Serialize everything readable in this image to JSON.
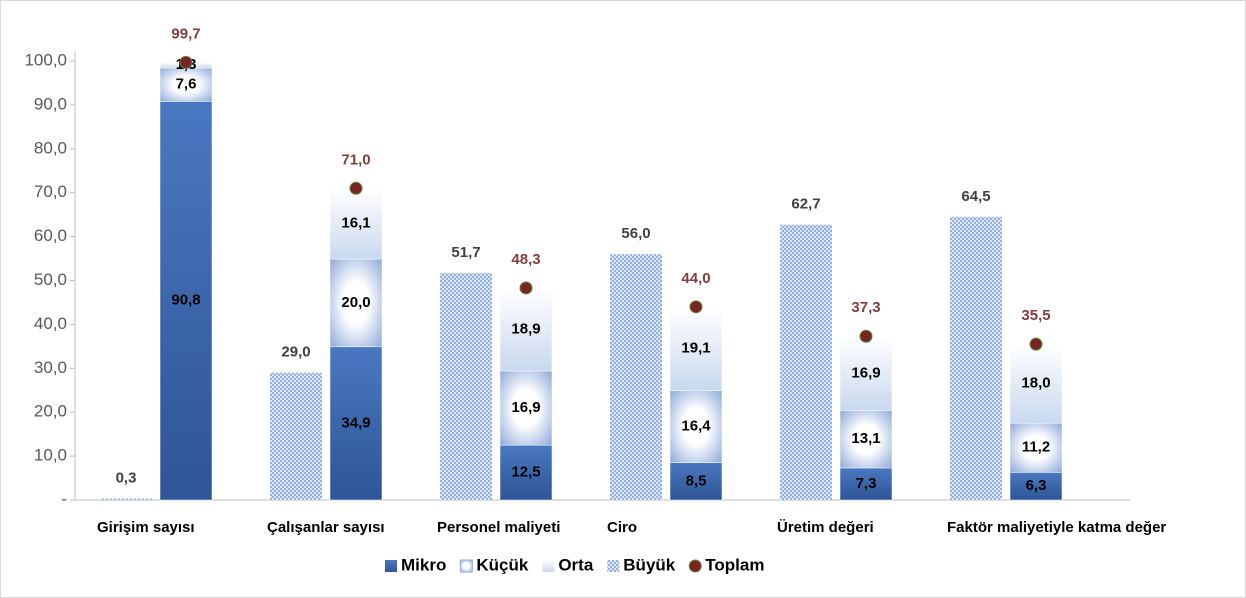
{
  "chart_data": {
    "type": "bar",
    "categories": [
      "Girişim sayısı",
      "Çalışanlar sayısı",
      "Personel maliyeti",
      "Ciro",
      "Üretim değeri",
      "Faktör maliyetiyle katma değer"
    ],
    "series": [
      {
        "name": "Mikro",
        "color": "#4a78c0",
        "values": [
          90.8,
          34.9,
          12.5,
          8.5,
          7.3,
          6.3
        ],
        "value_labels": [
          "90,8",
          "34,9",
          "12,5",
          "8,5",
          "7,3",
          "6,3"
        ]
      },
      {
        "name": "Küçük",
        "color": "#8eaadb",
        "values": [
          7.6,
          20.0,
          16.9,
          16.4,
          13.1,
          11.2
        ],
        "value_labels": [
          "7,6",
          "20,0",
          "16,9",
          "16,4",
          "13,1",
          "11,2"
        ]
      },
      {
        "name": "Orta",
        "color": "#c9d8ef",
        "values": [
          1.3,
          16.1,
          18.9,
          19.1,
          16.9,
          18.0
        ],
        "value_labels": [
          "1,3",
          "16,1",
          "18,9",
          "19,1",
          "16,9",
          "18,0"
        ]
      },
      {
        "name": "Büyük",
        "color": "#7d9fd6",
        "values": [
          0.3,
          29.0,
          51.7,
          56.0,
          62.7,
          64.5
        ],
        "value_labels": [
          "0,3",
          "29,0",
          "51,7",
          "56,0",
          "62,7",
          "64,5"
        ]
      },
      {
        "name": "Toplam",
        "color": "#7b2222",
        "values": [
          99.7,
          71.0,
          48.3,
          44.0,
          37.3,
          35.5
        ],
        "value_labels": [
          "99,7",
          "71,0",
          "48,3",
          "44,0",
          "37,3",
          "35,5"
        ]
      }
    ],
    "ylim": [
      0,
      100
    ],
    "yticks": [
      {
        "value": 0,
        "label": "-"
      },
      {
        "value": 10,
        "label": "10,0"
      },
      {
        "value": 20,
        "label": "20,0"
      },
      {
        "value": 30,
        "label": "30,0"
      },
      {
        "value": 40,
        "label": "40,0"
      },
      {
        "value": 50,
        "label": "50,0"
      },
      {
        "value": 60,
        "label": "60,0"
      },
      {
        "value": 70,
        "label": "70,0"
      },
      {
        "value": 80,
        "label": "80,0"
      },
      {
        "value": 90,
        "label": "90,0"
      },
      {
        "value": 100,
        "label": "100,0"
      }
    ],
    "legend": "bottom"
  }
}
